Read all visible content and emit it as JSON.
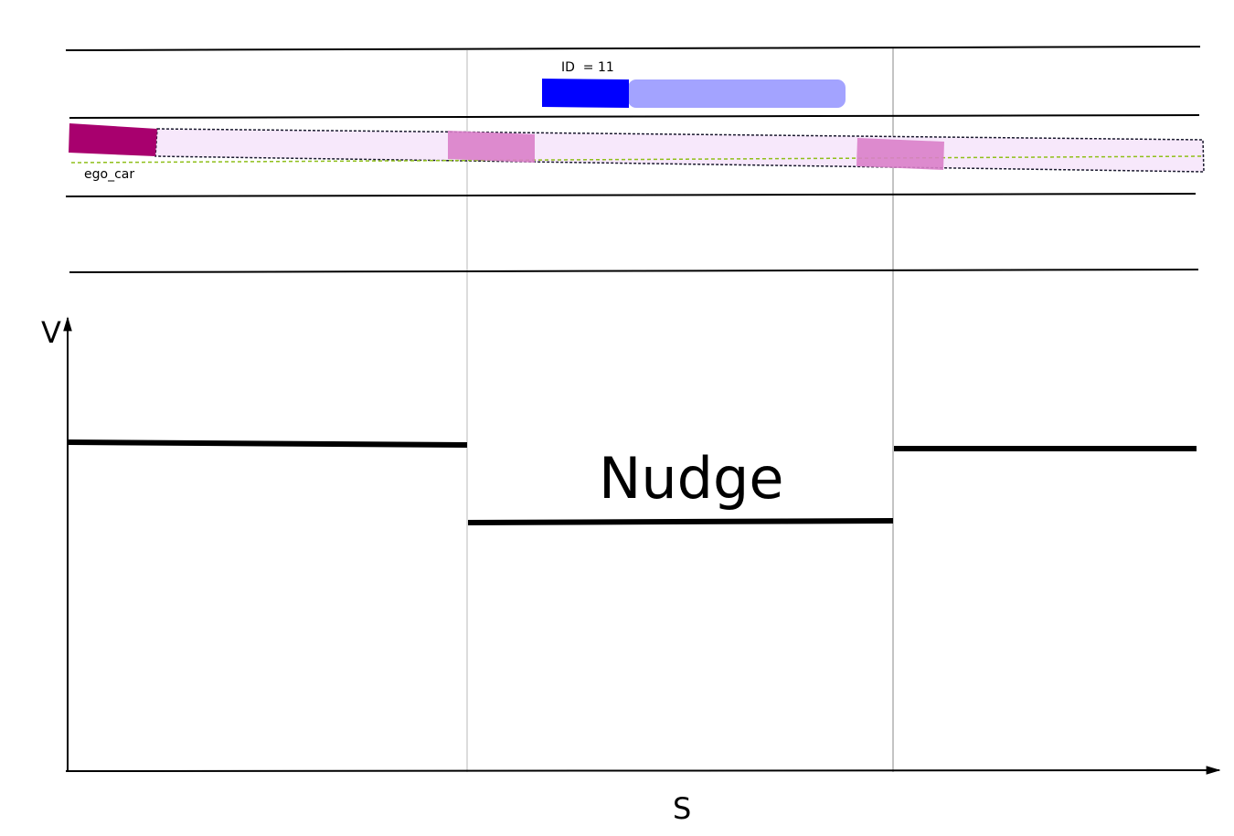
{
  "labels": {
    "obstacle_id": "ID  = 11",
    "ego_car": "ego_car",
    "y_axis": "V",
    "x_axis": "S",
    "region": "Nudge"
  },
  "colors": {
    "ego_car": "#a8006e",
    "ego_trajectory_fill": "#f7e8fb",
    "future_pose": "#d97fc9",
    "reference_line": "#8fbf1a",
    "obstacle": "#0000ff",
    "obstacle_prediction": "#a3a3ff",
    "lane_line": "#000000",
    "speed_profile": "#000000"
  },
  "sections": [
    "before",
    "nudge",
    "after"
  ],
  "speed_profile": {
    "relative_levels": [
      "high",
      "low",
      "high"
    ]
  }
}
